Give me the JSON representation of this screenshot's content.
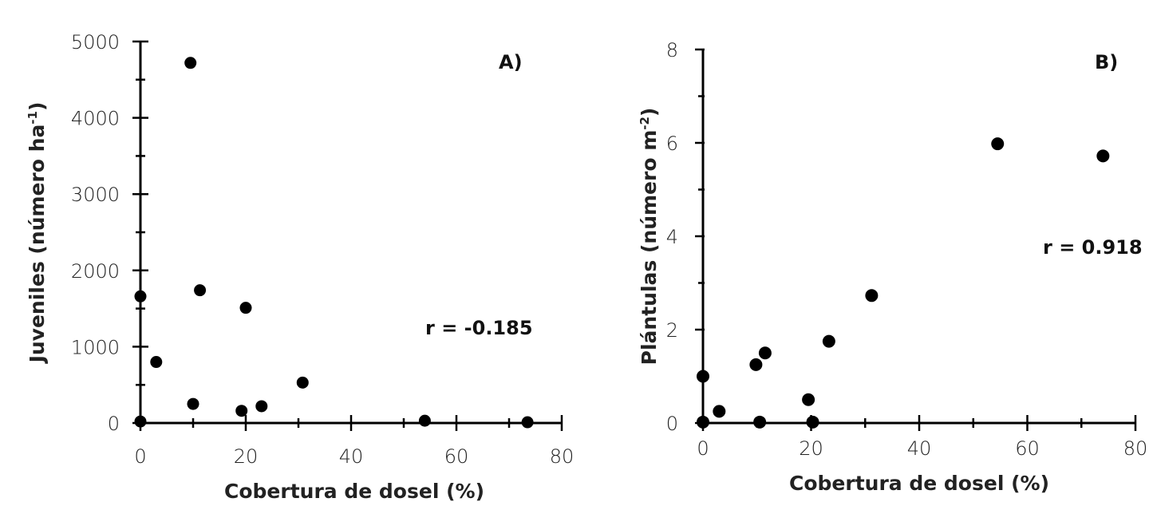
{
  "chart_data": [
    {
      "type": "scatter",
      "panel": "A)",
      "xlabel": "Cobertura de dosel (%)",
      "ylabel": {
        "main": "Juveniles (número ha",
        "sup": "-1",
        "end": ")"
      },
      "xlim": [
        0,
        80
      ],
      "ylim": [
        0,
        5000
      ],
      "xticks": [
        0,
        20,
        40,
        60,
        80
      ],
      "yticks": [
        0,
        1000,
        2000,
        3000,
        4000,
        5000
      ],
      "x_minor": 10,
      "y_minor": 500,
      "annotation": "r = -0.185",
      "points": [
        {
          "x": 0,
          "y": 1660
        },
        {
          "x": 0,
          "y": 20
        },
        {
          "x": 3,
          "y": 800
        },
        {
          "x": 9.5,
          "y": 4720
        },
        {
          "x": 10,
          "y": 250
        },
        {
          "x": 11.3,
          "y": 1740
        },
        {
          "x": 19.2,
          "y": 160
        },
        {
          "x": 20,
          "y": 1510
        },
        {
          "x": 23,
          "y": 220
        },
        {
          "x": 30.8,
          "y": 530
        },
        {
          "x": 54,
          "y": 30
        },
        {
          "x": 73.5,
          "y": 10
        }
      ]
    },
    {
      "type": "scatter",
      "panel": "B)",
      "xlabel": "Cobertura de dosel (%)",
      "ylabel": {
        "main": "Plántulas (número m",
        "sup": "-2",
        "end": ")"
      },
      "xlim": [
        0,
        80
      ],
      "ylim": [
        0,
        8
      ],
      "xticks": [
        0,
        20,
        40,
        60,
        80
      ],
      "yticks": [
        0,
        2,
        4,
        6,
        8
      ],
      "x_minor": 10,
      "y_minor": 1,
      "annotation": "r = 0.918",
      "points": [
        {
          "x": 0,
          "y": 1.0
        },
        {
          "x": 0,
          "y": 0.02
        },
        {
          "x": 3,
          "y": 0.25
        },
        {
          "x": 9.8,
          "y": 1.25
        },
        {
          "x": 10.5,
          "y": 0.02
        },
        {
          "x": 11.5,
          "y": 1.5
        },
        {
          "x": 19.5,
          "y": 0.5
        },
        {
          "x": 20.3,
          "y": 0.02
        },
        {
          "x": 23.3,
          "y": 1.75
        },
        {
          "x": 31.2,
          "y": 2.73
        },
        {
          "x": 54.5,
          "y": 5.98
        },
        {
          "x": 74,
          "y": 5.72
        }
      ]
    }
  ]
}
